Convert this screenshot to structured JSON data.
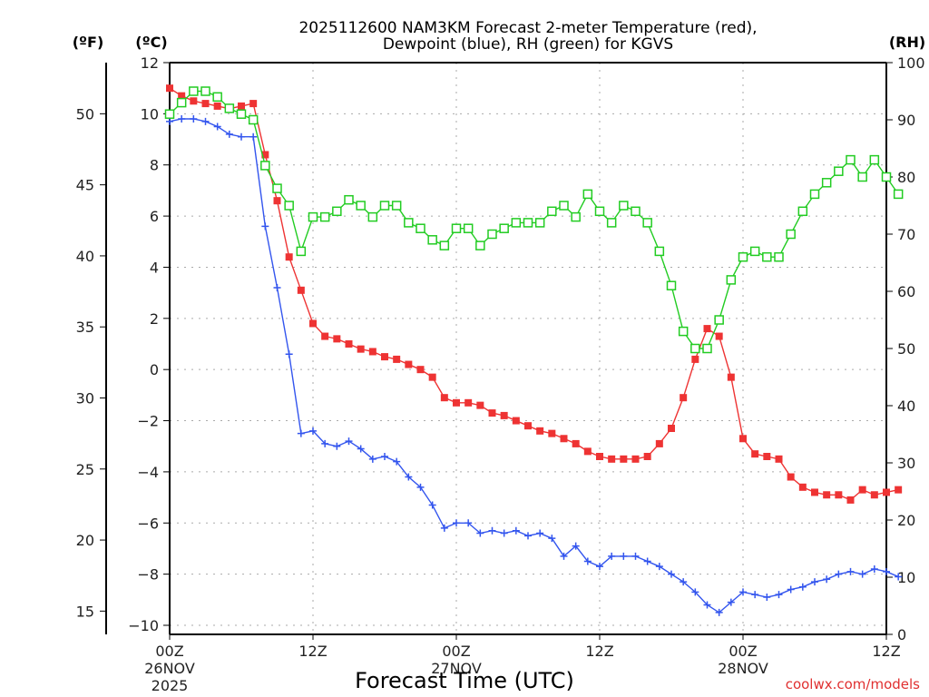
{
  "chart_data": {
    "type": "line",
    "title_line1": "2025112600 NAM3KM Forecast 2-meter Temperature (red),",
    "title_line2": "Dewpoint (blue), RH (green) for KGVS",
    "xlabel": "Forecast Time (UTC)",
    "credit": "coolwx.com/models",
    "units": {
      "fahrenheit": "(ºF)",
      "celsius": "(ºC)",
      "rh": "(RH)"
    },
    "x_hours_range": [
      0,
      60
    ],
    "x_ticks": [
      {
        "hour": 0,
        "line1": "00Z",
        "line2": "26NOV",
        "line3": "2025"
      },
      {
        "hour": 12,
        "line1": "12Z",
        "line2": "",
        "line3": ""
      },
      {
        "hour": 24,
        "line1": "00Z",
        "line2": "27NOV",
        "line3": ""
      },
      {
        "hour": 36,
        "line1": "12Z",
        "line2": "",
        "line3": ""
      },
      {
        "hour": 48,
        "line1": "00Z",
        "line2": "28NOV",
        "line3": ""
      },
      {
        "hour": 60,
        "line1": "12Z",
        "line2": "",
        "line3": ""
      }
    ],
    "y_celsius": {
      "range": [
        -10,
        12
      ],
      "ticks": [
        "12",
        "10",
        "8",
        "6",
        "4",
        "2",
        "0",
        "-2",
        "-4",
        "-6",
        "-8",
        "-10"
      ],
      "tick_values": [
        12,
        10,
        8,
        6,
        4,
        2,
        0,
        -2,
        -4,
        -6,
        -8,
        -10
      ]
    },
    "y_fahrenheit": {
      "ticks": [
        "50",
        "45",
        "40",
        "35",
        "30",
        "25",
        "20",
        "15"
      ],
      "tick_values": [
        50,
        45,
        40,
        35,
        30,
        25,
        20,
        15
      ]
    },
    "y_rh": {
      "range": [
        0,
        100
      ],
      "ticks": [
        "100",
        "90",
        "80",
        "70",
        "60",
        "50",
        "40",
        "30",
        "20",
        "10",
        "0"
      ],
      "tick_values": [
        100,
        90,
        80,
        70,
        60,
        50,
        40,
        30,
        20,
        10,
        0
      ]
    },
    "grid": true,
    "series": [
      {
        "name": "Temperature",
        "unit": "C",
        "color": "#ee3333",
        "marker": "filled-square",
        "values": [
          11.0,
          10.7,
          10.5,
          10.4,
          10.3,
          10.2,
          10.3,
          10.4,
          8.4,
          6.6,
          4.4,
          3.1,
          1.8,
          1.3,
          1.2,
          1.0,
          0.8,
          0.7,
          0.5,
          0.4,
          0.2,
          0.0,
          -0.3,
          -1.1,
          -1.3,
          -1.3,
          -1.4,
          -1.7,
          -1.8,
          -2.0,
          -2.2,
          -2.4,
          -2.5,
          -2.7,
          -2.9,
          -3.2,
          -3.4,
          -3.5,
          -3.5,
          -3.5,
          -3.4,
          -2.9,
          -2.3,
          -1.1,
          0.4,
          1.6,
          1.3,
          -0.3,
          -2.7,
          -3.3,
          -3.4,
          -3.5,
          -4.2,
          -4.6,
          -4.8,
          -4.9,
          -4.9,
          -5.1,
          -4.7,
          -4.9,
          -4.8,
          -4.7
        ]
      },
      {
        "name": "Dewpoint",
        "unit": "C",
        "color": "#3355ee",
        "marker": "plus",
        "values": [
          9.7,
          9.8,
          9.8,
          9.7,
          9.5,
          9.2,
          9.1,
          9.1,
          5.6,
          3.2,
          0.6,
          -2.5,
          -2.4,
          -2.9,
          -3.0,
          -2.8,
          -3.1,
          -3.5,
          -3.4,
          -3.6,
          -4.2,
          -4.6,
          -5.3,
          -6.2,
          -6.0,
          -6.0,
          -6.4,
          -6.3,
          -6.4,
          -6.3,
          -6.5,
          -6.4,
          -6.6,
          -7.3,
          -6.9,
          -7.5,
          -7.7,
          -7.3,
          -7.3,
          -7.3,
          -7.5,
          -7.7,
          -8.0,
          -8.3,
          -8.7,
          -9.2,
          -9.5,
          -9.1,
          -8.7,
          -8.8,
          -8.9,
          -8.8,
          -8.6,
          -8.5,
          -8.3,
          -8.2,
          -8.0,
          -7.9,
          -8.0,
          -7.8,
          -7.9,
          -8.1
        ]
      },
      {
        "name": "RH",
        "unit": "%",
        "color": "#22cc22",
        "marker": "open-square",
        "values": [
          91,
          93,
          95,
          95,
          94,
          92,
          91,
          90,
          82,
          78,
          75,
          67,
          73,
          73,
          74,
          76,
          75,
          73,
          75,
          75,
          72,
          71,
          69,
          68,
          71,
          71,
          68,
          70,
          71,
          72,
          72,
          72,
          74,
          75,
          73,
          77,
          74,
          72,
          75,
          74,
          72,
          67,
          61,
          53,
          50,
          50,
          55,
          62,
          66,
          67,
          66,
          66,
          70,
          74,
          77,
          79,
          81,
          83,
          80,
          83,
          80,
          77
        ]
      }
    ]
  }
}
